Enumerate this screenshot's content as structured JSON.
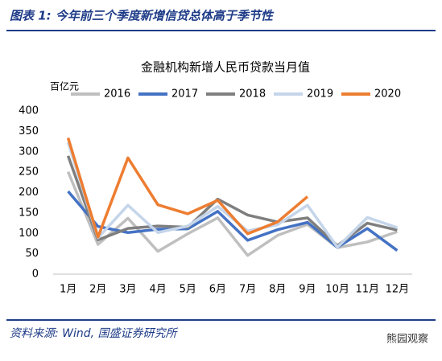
{
  "header": {
    "title": "图表 1:  今年前三个季度新增信贷总体高于季节性"
  },
  "chart_data": {
    "type": "line",
    "title": "金融机构新增人民币贷款当月值",
    "y_label": "百亿元",
    "categories": [
      "1月",
      "2月",
      "3月",
      "4月",
      "5月",
      "6月",
      "7月",
      "8月",
      "9月",
      "10月",
      "11月",
      "12月"
    ],
    "series": [
      {
        "name": "2016",
        "color": "#bfbfbf",
        "values": [
          251,
          73,
          137,
          56,
          99,
          138,
          46,
          95,
          122,
          65,
          79,
          104
        ]
      },
      {
        "name": "2017",
        "color": "#4472c4",
        "values": [
          203,
          117,
          102,
          110,
          111,
          154,
          83,
          109,
          127,
          66,
          112,
          58
        ]
      },
      {
        "name": "2018",
        "color": "#7f7f7f",
        "values": [
          290,
          84,
          112,
          118,
          115,
          184,
          145,
          128,
          138,
          70,
          125,
          108
        ]
      },
      {
        "name": "2019",
        "color": "#c5d5ea",
        "values": [
          323,
          89,
          169,
          102,
          118,
          166,
          106,
          121,
          169,
          66,
          139,
          114
        ]
      },
      {
        "name": "2020",
        "color": "#ed7d31",
        "values": [
          334,
          91,
          285,
          170,
          148,
          181,
          99,
          128,
          190,
          null,
          null,
          null
        ]
      }
    ],
    "ylim": [
      0,
      400
    ],
    "yticks": [
      0,
      50,
      100,
      150,
      200,
      250,
      300,
      350,
      400
    ],
    "grid": false
  },
  "footer": {
    "source": "资料来源:  Wind,  国盛证券研究所",
    "watermark": "熊园观察"
  }
}
